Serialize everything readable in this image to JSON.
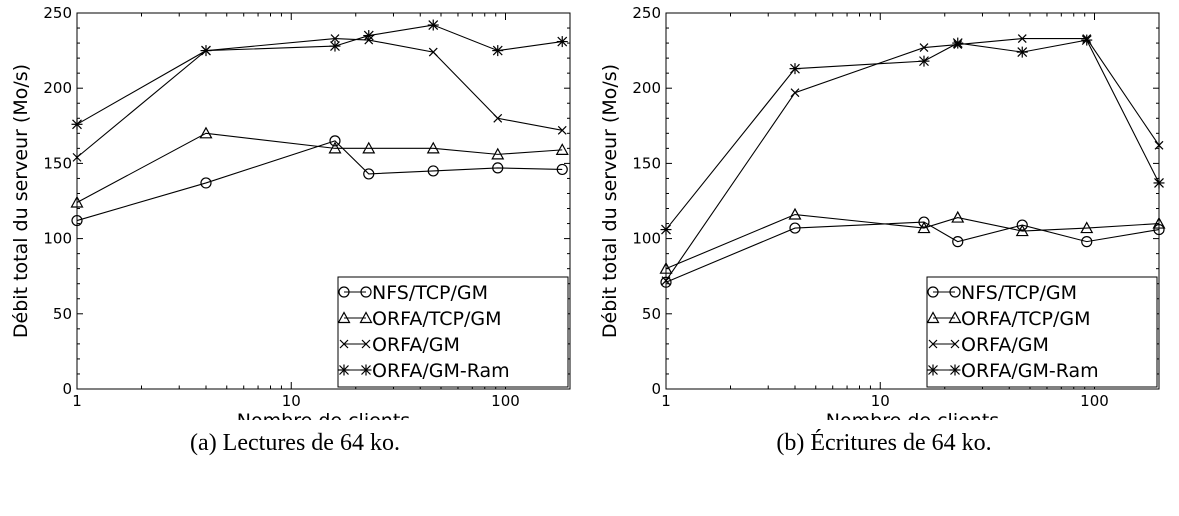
{
  "figures": [
    {
      "caption": "(a) Lectures de 64 ko.",
      "chart_data": {
        "type": "line",
        "xscale": "log",
        "xlabel": "Nombre de clients",
        "ylabel": "Débit total du serveur (Mo/s)",
        "xlim": [
          1,
          200
        ],
        "ylim": [
          0,
          250
        ],
        "xticks": [
          "1",
          "10",
          "100"
        ],
        "yticks": [
          "0",
          "50",
          "100",
          "150",
          "200",
          "250"
        ],
        "legend_position": "bottom-right",
        "series": [
          {
            "name": "NFS/TCP/GM",
            "marker": "circle",
            "x": [
              1,
              4,
              16,
              23,
              46,
              92,
              184
            ],
            "y": [
              112,
              137,
              165,
              143,
              145,
              147,
              146
            ]
          },
          {
            "name": "ORFA/TCP/GM",
            "marker": "triangle",
            "x": [
              1,
              4,
              16,
              23,
              46,
              92,
              184
            ],
            "y": [
              124,
              170,
              160,
              160,
              160,
              156,
              159
            ]
          },
          {
            "name": "ORFA/GM",
            "marker": "x",
            "x": [
              1,
              4,
              16,
              23,
              46,
              92,
              184
            ],
            "y": [
              154,
              225,
              233,
              232,
              224,
              180,
              172
            ]
          },
          {
            "name": "ORFA/GM-Ram",
            "marker": "star",
            "x": [
              1,
              4,
              16,
              23,
              46,
              92,
              184
            ],
            "y": [
              176,
              225,
              228,
              235,
              242,
              225,
              231
            ]
          }
        ]
      }
    },
    {
      "caption": "(b) Écritures de 64 ko.",
      "chart_data": {
        "type": "line",
        "xscale": "log",
        "xlabel": "Nombre de clients",
        "ylabel": "Débit total du serveur (Mo/s)",
        "xlim": [
          1,
          200
        ],
        "ylim": [
          0,
          250
        ],
        "xticks": [
          "1",
          "10",
          "100"
        ],
        "yticks": [
          "0",
          "50",
          "100",
          "150",
          "200",
          "250"
        ],
        "legend_position": "bottom-right",
        "series": [
          {
            "name": "NFS/TCP/GM",
            "marker": "circle",
            "x": [
              1,
              4,
              16,
              23,
              46,
              92,
              200
            ],
            "y": [
              71,
              107,
              111,
              98,
              109,
              98,
              106
            ]
          },
          {
            "name": "ORFA/TCP/GM",
            "marker": "triangle",
            "x": [
              1,
              4,
              16,
              23,
              46,
              92,
              200
            ],
            "y": [
              80,
              116,
              107,
              114,
              105,
              107,
              110
            ]
          },
          {
            "name": "ORFA/GM",
            "marker": "x",
            "x": [
              1,
              4,
              16,
              23,
              46,
              92,
              200
            ],
            "y": [
              72,
              197,
              227,
              229,
              233,
              233,
              162
            ]
          },
          {
            "name": "ORFA/GM-Ram",
            "marker": "star",
            "x": [
              1,
              4,
              16,
              23,
              46,
              92,
              200
            ],
            "y": [
              106,
              213,
              218,
              230,
              224,
              232,
              137
            ]
          }
        ]
      }
    }
  ]
}
